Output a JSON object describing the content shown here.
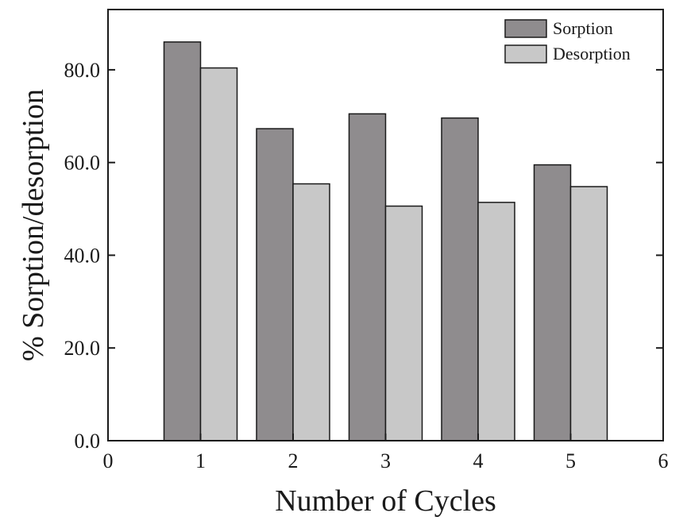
{
  "chart_data": {
    "type": "bar",
    "title": "",
    "xlabel": "Number of Cycles",
    "ylabel": "% Sorption/desorption",
    "categories": [
      1,
      2,
      3,
      4,
      5
    ],
    "series": [
      {
        "name": "Sorption",
        "values": [
          86.0,
          67.3,
          70.5,
          69.6,
          59.5
        ],
        "color": "#8f8c8e"
      },
      {
        "name": "Desorption",
        "values": [
          80.4,
          55.4,
          50.6,
          51.4,
          54.8
        ],
        "color": "#c8c8c8"
      }
    ],
    "xlim": [
      0,
      6
    ],
    "ylim": [
      0,
      93
    ],
    "xticks": [
      0,
      1,
      2,
      3,
      4,
      5,
      6
    ],
    "xtick_labels": [
      "0",
      "1",
      "2",
      "3",
      "4",
      "5",
      "6"
    ],
    "yticks": [
      0,
      20,
      40,
      60,
      80
    ],
    "ytick_labels": [
      "0.0",
      "20.0",
      "40.0",
      "60.0",
      "80.0"
    ],
    "grid": false,
    "legend_position": "top-right"
  }
}
